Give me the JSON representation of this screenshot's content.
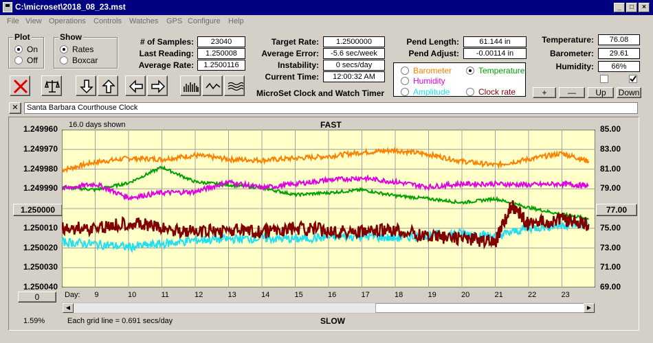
{
  "window": {
    "title": "C:\\microset\\2018_08_23.mst"
  },
  "menu": [
    "File",
    "View",
    "Operations",
    "Controls",
    "Watches",
    "GPS",
    "Configure",
    "Help"
  ],
  "plot_group": {
    "title": "Plot",
    "on": "On",
    "off": "Off"
  },
  "show_group": {
    "title": "Show",
    "rates": "Rates",
    "boxcar": "Boxcar"
  },
  "stats": {
    "samples_label": "# of Samples:",
    "samples": "23040",
    "last_label": "Last Reading:",
    "last": "1.250008",
    "avg_label": "Average Rate:",
    "avg": "1.2500116",
    "target_label": "Target Rate:",
    "target": "1.2500000",
    "avgerr_label": "Average Error:",
    "avgerr": "-5.6 sec/week",
    "instab_label": "Instability:",
    "instab": "0 secs/day",
    "time_label": "Current Time:",
    "time": "12:00:32 AM",
    "pend_len_label": "Pend Length:",
    "pend_len": "61.144 in",
    "pend_adj_label": "Pend Adjust:",
    "pend_adj": "-0.00114 in",
    "temp_label": "Temperature:",
    "temp": "76.08",
    "baro_label": "Barometer:",
    "baro": "29.61",
    "hum_label": "Humidity:",
    "hum": "66%"
  },
  "app_title": "MicroSet Clock and Watch Timer",
  "channels": {
    "barometer": "Barometer",
    "temperature": "Temperature",
    "humidity": "Humidity",
    "amplitude": "Amplitude",
    "clock_rate": "Clock rate"
  },
  "adjust_buttons": {
    "plus": "+",
    "minus": "—",
    "up": "Up",
    "down": "Down"
  },
  "clock_name": "Santa Barbara Courthouse Clock",
  "close_x": "✕",
  "plot": {
    "days_shown": "16.0 days shown",
    "fast": "FAST",
    "slow": "SLOW",
    "day_label": "Day:",
    "grid_note": "Each grid line = 0.691 secs/day",
    "left_center_btn": "1.250000",
    "right_center_btn": "77.00",
    "bottom_left_btn": "0",
    "percent": "1.59%"
  },
  "colors": {
    "barometer": "#ff8000",
    "temperature": "#00a000",
    "humidity": "#e000e0",
    "amplitude": "#20e0f0",
    "clock_rate": "#800000",
    "plot_bg": "#ffffc8"
  },
  "chart_data": {
    "type": "line",
    "x_label": "Day",
    "x_ticks": [
      9,
      10,
      11,
      12,
      13,
      14,
      15,
      16,
      17,
      18,
      19,
      20,
      21,
      22,
      23
    ],
    "xlim": [
      8,
      24
    ],
    "left_axis": {
      "ticks": [
        "1.249960",
        "1.249970",
        "1.249980",
        "1.249990",
        "1.250000",
        "1.250010",
        "1.250020",
        "1.250030",
        "1.250040"
      ],
      "ylim": [
        1.24996,
        1.25004
      ],
      "inverted": true
    },
    "right_axis": {
      "ticks": [
        "85.00",
        "83.00",
        "81.00",
        "79.00",
        "77.00",
        "75.00",
        "73.00",
        "71.00",
        "69.00"
      ],
      "ylim": [
        69,
        85
      ]
    },
    "series": [
      {
        "name": "Barometer",
        "axis": "right",
        "x": [
          8,
          9,
          10,
          11,
          12,
          13,
          14,
          15,
          16,
          17,
          18,
          19,
          20,
          21,
          22,
          23,
          23.8
        ],
        "y": [
          80.9,
          81.7,
          82.1,
          82.0,
          82.4,
          82.0,
          81.9,
          82.1,
          82.3,
          82.7,
          82.9,
          82.5,
          81.8,
          81.4,
          82.0,
          82.6,
          81.8
        ]
      },
      {
        "name": "Temperature",
        "axis": "right",
        "x": [
          8,
          9,
          10,
          11,
          12,
          13,
          14,
          15,
          16,
          17,
          18,
          19,
          20,
          21,
          22,
          23,
          23.8
        ],
        "y": [
          79.2,
          78.9,
          79.6,
          81.2,
          79.7,
          79.4,
          79.1,
          78.4,
          78.6,
          78.9,
          78.3,
          78.0,
          77.6,
          78.0,
          77.1,
          76.4,
          76.0
        ]
      },
      {
        "name": "Humidity",
        "axis": "right",
        "x": [
          8,
          9,
          10,
          11,
          12,
          13,
          14,
          15,
          16,
          17,
          18,
          19,
          20,
          21,
          22,
          23,
          23.8
        ],
        "y": [
          79.0,
          79.5,
          78.1,
          78.6,
          78.7,
          79.7,
          79.1,
          79.5,
          79.9,
          80.1,
          79.7,
          79.2,
          79.5,
          79.5,
          79.4,
          79.5,
          79.3
        ]
      },
      {
        "name": "Amplitude",
        "axis": "right",
        "x": [
          8,
          9,
          10,
          11,
          12,
          13,
          14,
          15,
          16,
          17,
          18,
          19,
          20,
          21,
          22,
          23,
          23.8
        ],
        "y": [
          73.6,
          73.4,
          73.1,
          73.4,
          73.8,
          73.9,
          74.0,
          73.9,
          74.1,
          74.2,
          74.0,
          74.3,
          74.5,
          74.2,
          75.0,
          75.3,
          75.5
        ]
      },
      {
        "name": "Clock rate",
        "axis": "left",
        "x": [
          8,
          9,
          10,
          11,
          12,
          13,
          14,
          15,
          16,
          17,
          18,
          19,
          20,
          21,
          21.5,
          22,
          23,
          23.8
        ],
        "y": [
          1.25001,
          1.25001,
          1.250007,
          1.25001,
          1.250012,
          1.250011,
          1.250012,
          1.25001,
          1.250011,
          1.250012,
          1.250011,
          1.250014,
          1.250015,
          1.250017,
          1.249998,
          1.250008,
          1.250005,
          1.250008
        ]
      }
    ]
  }
}
